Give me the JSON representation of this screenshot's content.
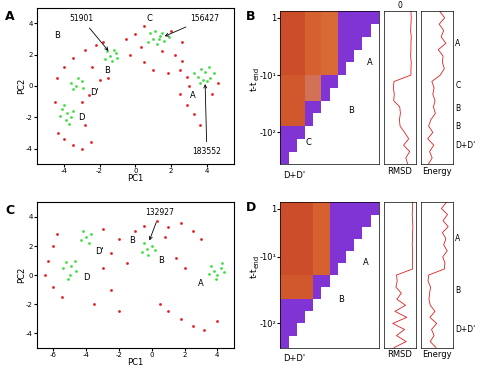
{
  "chart_data": [
    {
      "type": "scatter",
      "panel": "A",
      "xlabel": "PC1",
      "ylabel": "PC2",
      "xlim": [
        -5.5,
        5.5
      ],
      "xticks": [
        -4,
        -2,
        0,
        2,
        4
      ],
      "ylim": [
        -5,
        5
      ],
      "yticks": [
        -4,
        -2,
        0,
        2,
        4
      ],
      "series": [
        {
          "color": "#e02020",
          "marker": "o",
          "x": [
            -4.3,
            -4.0,
            -3.5,
            -3.0,
            -2.5,
            -4.5,
            -4.4,
            -4.0,
            -3.5,
            -2.8,
            -2.2,
            -1.8,
            -0.5,
            0.0,
            0.3,
            -0.3,
            0.5,
            1.0,
            1.8,
            2.5,
            2.9,
            2.2,
            2.6,
            2.5,
            2.9,
            3.3,
            3.6,
            4.3,
            4.6,
            2.0,
            2.6,
            -2.4,
            -2.0,
            -2.6,
            -3.0,
            -2.8,
            -1.5,
            0.5,
            1.5,
            3.0
          ],
          "y": [
            -3.0,
            -3.4,
            -3.8,
            -4.0,
            -3.6,
            -1.0,
            0.5,
            1.2,
            1.8,
            2.3,
            2.6,
            2.8,
            3.0,
            3.3,
            2.5,
            2.0,
            1.5,
            1.0,
            0.8,
            1.0,
            0.6,
            2.0,
            1.6,
            -0.5,
            -1.2,
            -1.8,
            -2.5,
            -0.5,
            0.2,
            3.5,
            2.8,
            1.2,
            0.4,
            -0.6,
            -1.0,
            -2.5,
            0.5,
            3.8,
            2.2,
            0.0
          ]
        },
        {
          "color": "#44dd44",
          "marker": "o",
          "x": [
            3.5,
            3.9,
            4.2,
            3.7,
            4.0,
            3.3,
            4.4,
            3.8,
            4.1,
            3.6,
            1.0,
            1.4,
            1.2,
            0.8,
            1.6,
            1.1,
            1.9,
            0.7,
            1.3,
            1.5,
            -1.4,
            -1.1,
            -1.7,
            -1.3,
            -1.0,
            -1.6,
            -1.2,
            -3.3,
            -3.0,
            -3.5,
            -3.2,
            -2.9,
            -3.6,
            -3.8,
            -4.1,
            -3.6,
            -3.9,
            -4.2,
            -3.5,
            -3.7,
            -4.0
          ],
          "y": [
            0.6,
            0.9,
            0.5,
            1.1,
            0.3,
            0.8,
            0.8,
            0.4,
            1.2,
            0.2,
            3.0,
            3.2,
            2.7,
            3.4,
            2.9,
            3.5,
            3.1,
            2.8,
            3.0,
            3.4,
            1.9,
            2.1,
            1.7,
            1.6,
            1.8,
            2.2,
            2.3,
            0.0,
            0.3,
            -0.2,
            0.5,
            -0.1,
            0.2,
            -1.7,
            -1.5,
            -2.0,
            -2.2,
            -1.9,
            -1.6,
            -2.4,
            -1.2
          ]
        }
      ],
      "annotations": [
        {
          "text": "51901",
          "x": -3.0,
          "y": 4.3,
          "arrow_to": [
            -1.4,
            2.1
          ]
        },
        {
          "text": "156427",
          "x": 3.9,
          "y": 4.3,
          "arrow_to": [
            1.5,
            3.1
          ]
        },
        {
          "text": "183552",
          "x": 4.0,
          "y": -4.2,
          "arrow_to": [
            3.9,
            0.3
          ]
        },
        {
          "text": "C",
          "x": 0.8,
          "y": 4.3
        },
        {
          "text": "B",
          "x": -4.4,
          "y": 3.2
        },
        {
          "text": "B",
          "x": -1.6,
          "y": 1.0
        },
        {
          "text": "A",
          "x": 3.2,
          "y": -0.6
        },
        {
          "text": "D'",
          "x": -2.3,
          "y": -0.4
        },
        {
          "text": "D",
          "x": -3.0,
          "y": -2.0
        }
      ]
    },
    {
      "type": "heatmap",
      "panel": "B",
      "ylabel": "t-t",
      "ylabel_sub": "end",
      "tick_labels": "y",
      "xlim": [
        0,
        12
      ],
      "ylim": [
        12,
        0
      ],
      "value_range": [
        0,
        1
      ],
      "yticks": [
        {
          "value": 0.5,
          "label": "1"
        },
        {
          "value": 5,
          "label": "-10¹"
        },
        {
          "value": 9.5,
          "label": "-10²"
        }
      ],
      "cells": [
        [
          0.9,
          0.9,
          0.9,
          0.8,
          0.8,
          0.75,
          0.75,
          0.05,
          0.05,
          0.05,
          0.05,
          0.05
        ],
        [
          0.9,
          0.9,
          0.9,
          0.8,
          0.8,
          0.75,
          0.75,
          0.05,
          0.05,
          0.05,
          0.05,
          null
        ],
        [
          0.9,
          0.9,
          0.9,
          0.8,
          0.8,
          0.75,
          0.75,
          0.05,
          0.05,
          0.05,
          null,
          null
        ],
        [
          0.9,
          0.9,
          0.9,
          0.8,
          0.8,
          0.75,
          0.75,
          0.05,
          0.05,
          null,
          null,
          null
        ],
        [
          0.9,
          0.9,
          0.9,
          0.8,
          0.8,
          0.75,
          0.75,
          0.05,
          null,
          null,
          null,
          null
        ],
        [
          0.85,
          0.85,
          0.85,
          0.6,
          0.6,
          0.05,
          0.05,
          null,
          null,
          null,
          null,
          null
        ],
        [
          0.85,
          0.85,
          0.85,
          0.6,
          0.6,
          0.05,
          null,
          null,
          null,
          null,
          null,
          null
        ],
        [
          0.85,
          0.85,
          0.85,
          0.05,
          0.05,
          null,
          null,
          null,
          null,
          null,
          null,
          null
        ],
        [
          0.85,
          0.85,
          0.85,
          0.05,
          null,
          null,
          null,
          null,
          null,
          null,
          null,
          null
        ],
        [
          0.05,
          0.05,
          0.05,
          null,
          null,
          null,
          null,
          null,
          null,
          null,
          null,
          null
        ],
        [
          0.05,
          0.05,
          null,
          null,
          null,
          null,
          null,
          null,
          null,
          null,
          null,
          null
        ],
        [
          0.05,
          null,
          null,
          null,
          null,
          null,
          null,
          null,
          null,
          null,
          null,
          null
        ]
      ],
      "annotations": [
        {
          "text": "A",
          "x": 10.5,
          "y": 4.0
        },
        {
          "text": "B",
          "x": 8.3,
          "y": 7.8
        },
        {
          "text": "C",
          "x": 3.0,
          "y": 10.3
        },
        {
          "text": "D+D'",
          "x": 0.3,
          "y": 12.9
        }
      ],
      "traces": [
        {
          "type": "line",
          "xlabel": "RMSD",
          "color": "#e02020",
          "tick_labels": false,
          "xlim": [
            0,
            10
          ],
          "top_label": "0",
          "y": [
            0,
            0.5,
            1,
            1.5,
            2,
            2.5,
            3,
            3.5,
            4,
            4.5,
            5,
            5.5,
            6,
            6.5,
            7,
            7.5,
            8,
            8.5,
            9,
            9.5,
            10,
            10.5,
            11,
            11.5,
            12
          ],
          "values": [
            8.5,
            8.6,
            8.5,
            8.4,
            8.6,
            8.5,
            8.5,
            8.4,
            8.6,
            8.5,
            8.5,
            3.2,
            3.0,
            3.3,
            3.1,
            5.0,
            5.2,
            4.9,
            5.1,
            6.5,
            7.8,
            6.2,
            8.1,
            6.9,
            7.5
          ],
          "side_labels": []
        },
        {
          "type": "line",
          "xlabel": "Energy",
          "color": "#e02020",
          "tick_labels": false,
          "xlim": [
            0,
            10
          ],
          "y": [
            0,
            0.5,
            1,
            1.5,
            2,
            2.5,
            3,
            3.5,
            4,
            4.5,
            5,
            5.5,
            6,
            6.5,
            7,
            7.5,
            8,
            8.5,
            9,
            9.5,
            10,
            10.5,
            11,
            11.5,
            12
          ],
          "values": [
            6.0,
            7.5,
            5.8,
            7.2,
            6.4,
            7.9,
            5.5,
            7.0,
            6.8,
            7.4,
            6.1,
            3.5,
            4.2,
            3.8,
            4.5,
            4.0,
            4.6,
            3.2,
            2.5,
            3.8,
            2.2,
            4.1,
            2.8,
            3.6,
            2.4
          ],
          "side_labels": [
            {
              "text": "A",
              "y": 2.5
            },
            {
              "text": "C",
              "y": 5.8
            },
            {
              "text": "B",
              "y": 7.6
            },
            {
              "text": "B",
              "y": 9.0
            },
            {
              "text": "D+D'",
              "y": 10.5
            }
          ]
        }
      ]
    },
    {
      "type": "scatter",
      "panel": "C",
      "xlabel": "PC1",
      "ylabel": "PC2",
      "xlim": [
        -7,
        5
      ],
      "xticks": [
        -6,
        -4,
        -2,
        0,
        2,
        4
      ],
      "ylim": [
        -5,
        5
      ],
      "yticks": [
        -4,
        -2,
        0,
        2,
        4
      ],
      "series": [
        {
          "color": "#e02020",
          "marker": "o",
          "x": [
            -0.5,
            0.3,
            1.0,
            1.8,
            2.5,
            3.0,
            -1.0,
            0.8,
            -6.0,
            -6.3,
            -6.5,
            -6.0,
            -5.5,
            -5.8,
            -2.5,
            -2.0,
            -1.5,
            -3.0,
            1.0,
            1.8,
            2.5,
            3.2,
            4.0,
            0.5,
            -2.5,
            -3.5,
            2.0,
            1.5,
            -3.0,
            -2.0
          ],
          "y": [
            3.4,
            3.7,
            3.3,
            3.6,
            3.0,
            2.5,
            3.0,
            2.6,
            2.0,
            1.0,
            0.0,
            -0.8,
            -1.5,
            2.8,
            1.5,
            2.5,
            0.8,
            0.5,
            -2.5,
            -3.0,
            -3.5,
            -3.8,
            -3.2,
            -2.0,
            -1.0,
            -2.0,
            0.5,
            1.2,
            3.2,
            -2.5
          ]
        },
        {
          "color": "#44dd44",
          "marker": "o",
          "x": [
            3.8,
            4.2,
            4.0,
            3.6,
            4.4,
            3.9,
            4.3,
            3.5,
            -0.3,
            0.0,
            -0.6,
            -0.2,
            0.2,
            -0.5,
            -4.0,
            -3.7,
            -4.3,
            -3.8,
            -4.2,
            -4.9,
            -5.2,
            -4.6,
            -5.0,
            -5.4,
            -4.7,
            -5.1
          ],
          "y": [
            0.3,
            0.5,
            0.0,
            0.6,
            0.2,
            -0.3,
            0.8,
            0.1,
            1.8,
            2.0,
            1.6,
            1.4,
            1.7,
            2.2,
            2.6,
            2.8,
            2.4,
            2.2,
            3.0,
            0.6,
            0.9,
            0.3,
            0.0,
            0.5,
            1.0,
            -0.3
          ]
        }
      ],
      "annotations": [
        {
          "text": "132927",
          "x": 0.5,
          "y": 4.3,
          "arrow_to": [
            -0.2,
            2.2
          ]
        },
        {
          "text": "B",
          "x": -1.2,
          "y": 2.4
        },
        {
          "text": "B",
          "x": 0.6,
          "y": 1.0
        },
        {
          "text": "A",
          "x": 3.0,
          "y": -0.6
        },
        {
          "text": "D'",
          "x": -3.2,
          "y": 1.6
        },
        {
          "text": "D",
          "x": -4.0,
          "y": -0.2
        }
      ]
    },
    {
      "type": "heatmap",
      "panel": "D",
      "ylabel": "t-t",
      "ylabel_sub": "end",
      "tick_labels": "y",
      "xlim": [
        0,
        12
      ],
      "ylim": [
        12,
        0
      ],
      "value_range": [
        0,
        1
      ],
      "yticks": [
        {
          "value": 0.5,
          "label": "1"
        },
        {
          "value": 4.5,
          "label": "-10¹"
        },
        {
          "value": 10,
          "label": "-10²"
        }
      ],
      "cells": [
        [
          0.9,
          0.9,
          0.9,
          0.9,
          0.8,
          0.8,
          0.05,
          0.05,
          0.05,
          0.05,
          0.05,
          0.05
        ],
        [
          0.9,
          0.9,
          0.9,
          0.9,
          0.8,
          0.8,
          0.05,
          0.05,
          0.05,
          0.05,
          0.05,
          null
        ],
        [
          0.9,
          0.9,
          0.9,
          0.9,
          0.8,
          0.8,
          0.05,
          0.05,
          0.05,
          0.05,
          null,
          null
        ],
        [
          0.9,
          0.9,
          0.9,
          0.9,
          0.8,
          0.8,
          0.05,
          0.05,
          0.05,
          null,
          null,
          null
        ],
        [
          0.9,
          0.9,
          0.9,
          0.9,
          0.8,
          0.8,
          0.05,
          0.05,
          null,
          null,
          null,
          null
        ],
        [
          0.9,
          0.9,
          0.9,
          0.9,
          0.8,
          0.8,
          0.05,
          null,
          null,
          null,
          null,
          null
        ],
        [
          0.85,
          0.85,
          0.85,
          0.85,
          0.05,
          0.05,
          null,
          null,
          null,
          null,
          null,
          null
        ],
        [
          0.85,
          0.85,
          0.85,
          0.85,
          0.05,
          null,
          null,
          null,
          null,
          null,
          null,
          null
        ],
        [
          0.05,
          0.05,
          0.05,
          0.05,
          null,
          null,
          null,
          null,
          null,
          null,
          null,
          null
        ],
        [
          0.05,
          0.05,
          0.05,
          null,
          null,
          null,
          null,
          null,
          null,
          null,
          null,
          null
        ],
        [
          0.05,
          0.05,
          null,
          null,
          null,
          null,
          null,
          null,
          null,
          null,
          null,
          null
        ],
        [
          0.05,
          null,
          null,
          null,
          null,
          null,
          null,
          null,
          null,
          null,
          null,
          null
        ]
      ],
      "annotations": [
        {
          "text": "A",
          "x": 10.0,
          "y": 5.0
        },
        {
          "text": "B",
          "x": 7.0,
          "y": 8.0
        },
        {
          "text": "D+D'",
          "x": 0.3,
          "y": 12.9
        }
      ],
      "traces": [
        {
          "type": "line",
          "xlabel": "RMSD",
          "color": "#e02020",
          "tick_labels": false,
          "xlim": [
            0,
            10
          ],
          "y": [
            0,
            0.5,
            1,
            1.5,
            2,
            2.5,
            3,
            3.5,
            4,
            4.5,
            5,
            5.5,
            6,
            6.5,
            7,
            7.5,
            8,
            8.5,
            9,
            9.5,
            10,
            10.5,
            11,
            11.5,
            12
          ],
          "values": [
            9.0,
            9.0,
            8.9,
            9.0,
            9.1,
            9.0,
            9.0,
            8.9,
            9.0,
            9.0,
            9.0,
            9.0,
            4.0,
            4.2,
            3.8,
            5.5,
            4.1,
            6.8,
            3.5,
            7.2,
            2.8,
            6.5,
            4.0,
            7.0,
            3.2
          ],
          "side_labels": []
        },
        {
          "type": "line",
          "xlabel": "Energy",
          "color": "#e02020",
          "tick_labels": false,
          "xlim": [
            0,
            10
          ],
          "y": [
            0,
            0.5,
            1,
            1.5,
            2,
            2.5,
            3,
            3.5,
            4,
            4.5,
            5,
            5.5,
            6,
            6.5,
            7,
            7.5,
            8,
            8.5,
            9,
            9.5,
            10,
            10.5,
            11,
            11.5,
            12
          ],
          "values": [
            8.0,
            6.5,
            8.4,
            7.0,
            8.6,
            6.8,
            7.9,
            7.2,
            8.3,
            6.9,
            7.6,
            7.4,
            2.5,
            2.3,
            3.1,
            2.8,
            2.6,
            3.0,
            4.5,
            2.9,
            5.0,
            3.4,
            4.2,
            3.0,
            4.8
          ],
          "side_labels": [
            {
              "text": "A",
              "y": 3.0
            },
            {
              "text": "B",
              "y": 7.3
            },
            {
              "text": "D+D'",
              "y": 10.5
            }
          ]
        }
      ]
    }
  ]
}
